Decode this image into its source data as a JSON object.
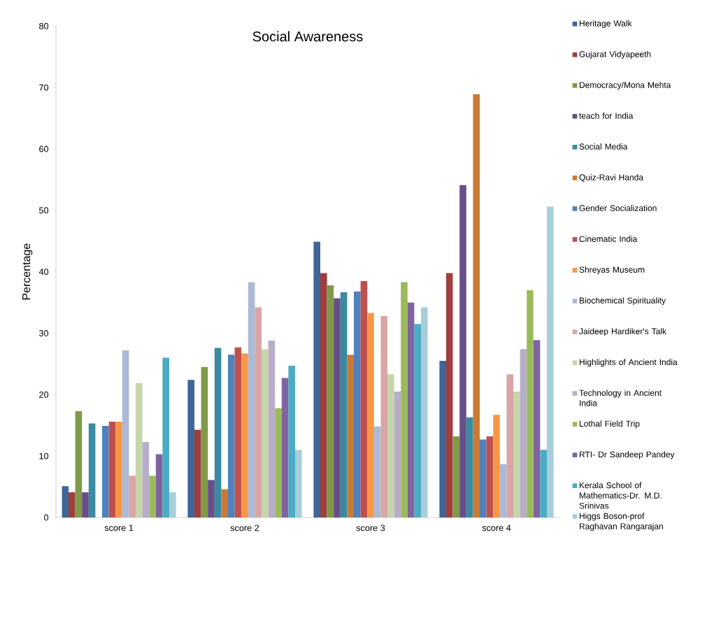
{
  "chart_data": {
    "type": "bar",
    "title": "Social Awareness",
    "ylabel": "Percentage",
    "categories": [
      "score  1",
      "score 2",
      "score  3",
      "score 4"
    ],
    "ylim": [
      0,
      80
    ],
    "yticks": [
      0,
      10,
      20,
      30,
      40,
      50,
      60,
      70,
      80
    ],
    "grid": false,
    "legend": "right",
    "series": [
      {
        "name": "Heritage Walk",
        "color": "#3e6697",
        "values": [
          5.1,
          22.4,
          44.9,
          25.5
        ]
      },
      {
        "name": "Gujarat Vidyapeeth",
        "color": "#9e3f3d",
        "values": [
          4.1,
          14.3,
          39.8,
          39.8
        ]
      },
      {
        "name": "Democracy/Mona Mehta",
        "color": "#7f9a48",
        "values": [
          17.3,
          24.5,
          37.8,
          13.2
        ]
      },
      {
        "name": "teach for India",
        "color": "#684e87",
        "values": [
          4.1,
          6.1,
          35.7,
          54.1
        ]
      },
      {
        "name": "Social Media",
        "color": "#3a8ba1",
        "values": [
          15.3,
          27.6,
          36.7,
          16.3
        ]
      },
      {
        "name": "Quiz-Ravi Handa",
        "color": "#ca7a37",
        "values": [
          0,
          4.6,
          26.5,
          68.9
        ]
      },
      {
        "name": "Gender Socialization",
        "color": "#4f81bd",
        "values": [
          14.9,
          26.5,
          36.8,
          12.7
        ]
      },
      {
        "name": "Cinematic India",
        "color": "#c0504d",
        "values": [
          15.6,
          27.7,
          38.5,
          13.2
        ]
      },
      {
        "name": "Shreyas Museum",
        "color": "#f79646",
        "values": [
          15.6,
          26.7,
          33.3,
          16.7
        ]
      },
      {
        "name": "Biochemical Spirituality",
        "color": "#aabad7",
        "values": [
          27.2,
          38.3,
          14.8,
          8.7
        ]
      },
      {
        "name": "Jaideep Hardiker's Talk",
        "color": "#d9a6a5",
        "values": [
          6.8,
          34.2,
          32.8,
          23.3
        ]
      },
      {
        "name": "Highlights of Ancient India",
        "color": "#c6d6aa",
        "values": [
          21.9,
          27.4,
          23.3,
          20.5
        ]
      },
      {
        "name": "Technology in Ancient India",
        "color": "#b8adc9",
        "values": [
          12.3,
          28.8,
          20.5,
          27.4
        ]
      },
      {
        "name": "Lothal Field Trip",
        "color": "#9bbb59",
        "values": [
          6.8,
          17.8,
          38.3,
          37.0
        ]
      },
      {
        "name": "RTI- Dr Sandeep Pandey",
        "color": "#8064a2",
        "values": [
          10.3,
          22.7,
          35.0,
          28.9
        ]
      },
      {
        "name": "Kerala School of Mathematics-Dr. M.D. Srinivas",
        "color": "#4bacc6",
        "values": [
          26.0,
          24.7,
          31.5,
          11.0
        ]
      },
      {
        "name": "Higgs Boson-prof Raghavan Rangarajan",
        "color": "#a8cedc",
        "values": [
          4.1,
          11.0,
          34.2,
          50.6
        ]
      }
    ]
  }
}
